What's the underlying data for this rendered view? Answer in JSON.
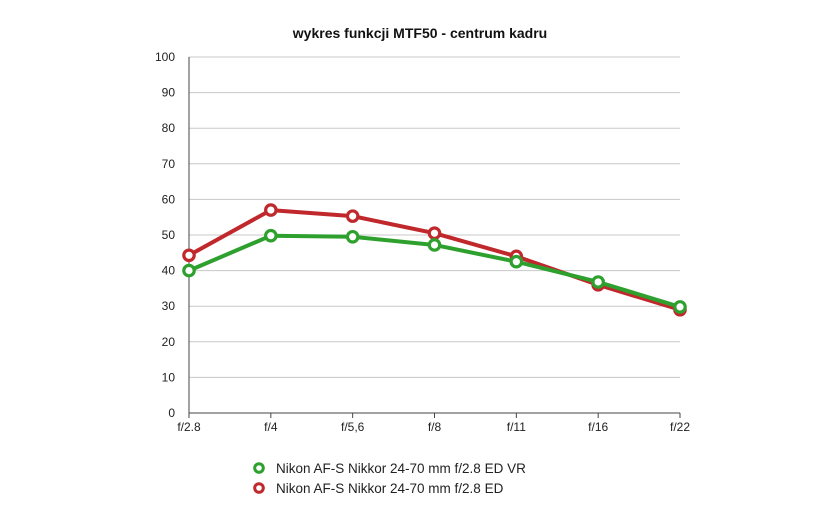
{
  "chart_data": {
    "type": "line",
    "title": "wykres funkcji MTF50 - centrum kadru",
    "xlabel": "",
    "ylabel": "",
    "categories": [
      "f/2.8",
      "f/4",
      "f/5,6",
      "f/8",
      "f/11",
      "f/16",
      "f/22"
    ],
    "ylim": [
      0,
      100
    ],
    "yticks": [
      "0",
      "10",
      "20",
      "30",
      "40",
      "50",
      "60",
      "70",
      "80",
      "90",
      "100"
    ],
    "grid": true,
    "legend_position": "bottom",
    "series": [
      {
        "name": "Nikon AF-S Nikkor 24-70 mm f/2.8 ED VR",
        "color": "#2ea02e",
        "values": [
          40,
          49.8,
          49.5,
          47.2,
          42.5,
          36.8,
          29.8
        ]
      },
      {
        "name": "Nikon AF-S Nikkor 24-70 mm f/2.8 ED",
        "color": "#c0282c",
        "values": [
          44.3,
          57,
          55.3,
          50.5,
          44,
          36,
          29
        ]
      }
    ]
  }
}
